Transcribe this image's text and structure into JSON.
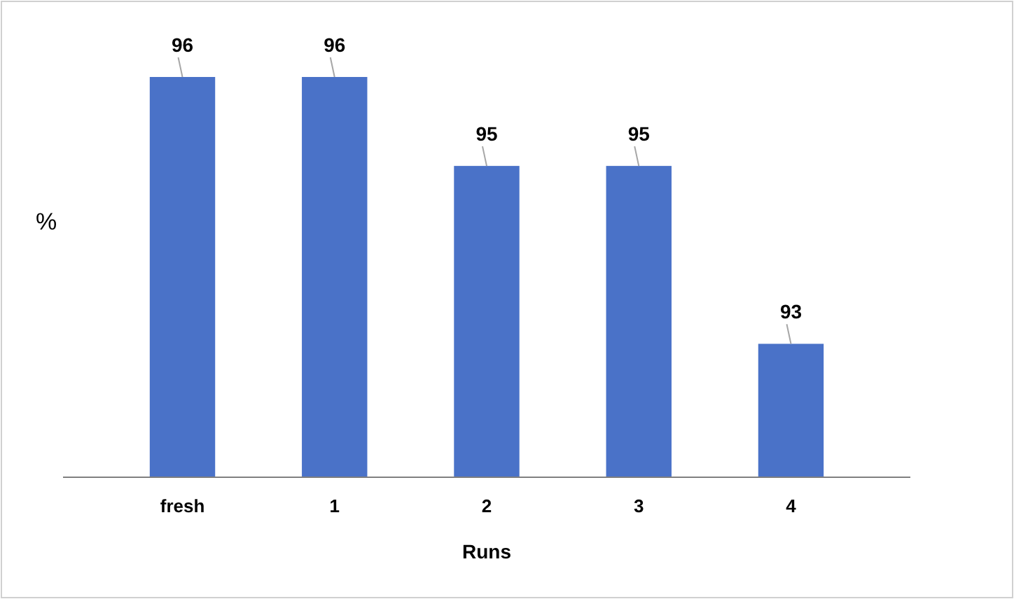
{
  "chart_data": {
    "type": "bar",
    "xlabel": "Runs",
    "ylabel": "%",
    "categories": [
      "fresh",
      "1",
      "2",
      "3",
      "4"
    ],
    "values": [
      96,
      96,
      95,
      95,
      93
    ],
    "color": "#4a72c8",
    "ylim": [
      91.5,
      96
    ],
    "data_labels": true,
    "tick_labels": "x"
  }
}
